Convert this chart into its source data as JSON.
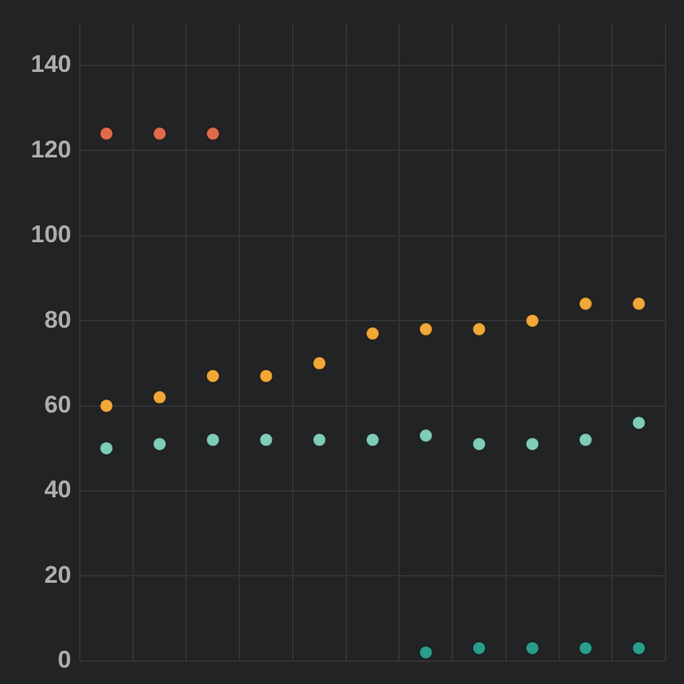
{
  "chart_data": {
    "type": "scatter",
    "categories": [
      null,
      null,
      null,
      null,
      null,
      null,
      null,
      null,
      null,
      null,
      null
    ],
    "series": [
      {
        "color": "#e06b4b",
        "values": [
          124,
          124,
          124,
          null,
          null,
          null,
          null,
          null,
          null,
          null,
          null
        ]
      },
      {
        "color": "#f2a838",
        "values": [
          60,
          62,
          67,
          67,
          70,
          77,
          78,
          78,
          80,
          84,
          84
        ]
      },
      {
        "color": "#80cdb7",
        "values": [
          50,
          51,
          52,
          52,
          52,
          52,
          53,
          51,
          51,
          52,
          56
        ]
      },
      {
        "color": "#2a9d8c",
        "values": [
          null,
          null,
          null,
          null,
          null,
          null,
          2,
          3,
          3,
          3,
          3
        ]
      }
    ],
    "ylim": [
      0,
      150
    ],
    "yticks": [
      0,
      20,
      40,
      60,
      80,
      100,
      120,
      140
    ],
    "grid": true,
    "marker": "circle",
    "legend": false,
    "tick_labels": "y"
  }
}
